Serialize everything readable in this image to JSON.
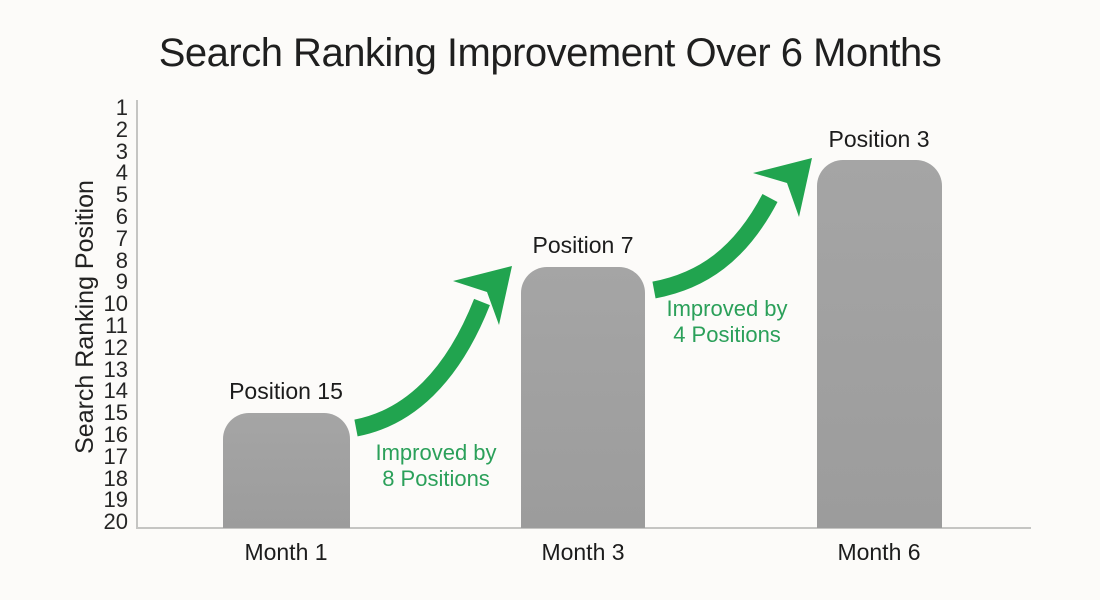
{
  "title": "Search Ranking Improvement Over 6 Months",
  "colors": {
    "background": "#fcfbf9",
    "bar": "#a0a0a0",
    "arrow_green": "#21a44f",
    "annotation_green": "#2ba05a",
    "text": "#1f1f1f",
    "axis_line": "#c5c5c3"
  },
  "chart_data": {
    "type": "bar",
    "title": "Search Ranking Improvement Over 6 Months",
    "xlabel": "",
    "ylabel": "Search Ranking Position",
    "y_axis_inverted": true,
    "ylim": [
      1,
      20
    ],
    "y_ticks": [
      "1",
      "2",
      "3",
      "4",
      "5",
      "6",
      "7",
      "8",
      "9",
      "10",
      "11",
      "12",
      "13",
      "14",
      "15",
      "16",
      "17",
      "18",
      "19",
      "20"
    ],
    "categories": [
      "Month 1",
      "Month 3",
      "Month 6"
    ],
    "values": [
      15,
      7,
      3
    ],
    "bar_labels": [
      "Position 15",
      "Position 7",
      "Position 3"
    ],
    "grid": false,
    "legend": false,
    "annotations": [
      {
        "line1": "Improved by",
        "line2": "8 Positions",
        "from": "Month 1",
        "to": "Month 3",
        "delta": 8
      },
      {
        "line1": "Improved by",
        "line2": "4 Positions",
        "from": "Month 3",
        "to": "Month 6",
        "delta": 4
      }
    ]
  }
}
